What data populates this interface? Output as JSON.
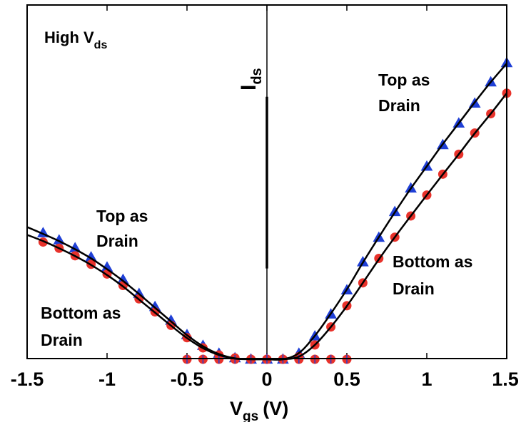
{
  "chart_data": {
    "type": "line",
    "xlabel_main": "V",
    "xlabel_sub": "gs",
    "xlabel_unit": "(V)",
    "ylabel_main": "I",
    "ylabel_sub": "ds",
    "xlim": [
      -1.5,
      1.5
    ],
    "ylim": [
      0,
      1
    ],
    "x_ticks": [
      "-1.5",
      "-1",
      "-0.5",
      "0",
      "0.5",
      "1",
      "1.5"
    ],
    "x_tick_values": [
      -1.5,
      -1,
      -0.5,
      0,
      0.5,
      1,
      1.5
    ],
    "y_ticks_labeled": false,
    "annotations": {
      "corner_main": "High V",
      "corner_sub": "ds",
      "left_top_1": "Top as",
      "left_top_2": "Drain",
      "left_bottom_1": "Bottom as",
      "left_bottom_2": "Drain",
      "right_top_1": "Top as",
      "right_top_2": "Drain",
      "right_bottom_1": "Bottom as",
      "right_bottom_2": "Drain"
    },
    "series": [
      {
        "color": "#1f3fd6",
        "marker": "triangle",
        "x": [
          -1.4,
          -1.3,
          -1.2,
          -1.1,
          -1.0,
          -0.9,
          -0.8,
          -0.7,
          -0.6,
          -0.5,
          -0.4,
          -0.3,
          -0.2,
          -0.1,
          0.0,
          0.1,
          0.2,
          0.3,
          0.4,
          0.5,
          0.6,
          0.7,
          0.8,
          0.9,
          1.0,
          1.1,
          1.2,
          1.3,
          1.4,
          1.5
        ],
        "y": [
          0.387,
          0.365,
          0.341,
          0.313,
          0.282,
          0.244,
          0.201,
          0.161,
          0.119,
          0.075,
          0.042,
          0.018,
          0.004,
          0.0,
          0.0,
          0.0,
          0.018,
          0.071,
          0.138,
          0.212,
          0.298,
          0.373,
          0.452,
          0.524,
          0.591,
          0.657,
          0.723,
          0.784,
          0.849,
          0.908
        ]
      },
      {
        "color": "#e8322b",
        "marker": "circle",
        "x": [
          -1.4,
          -1.3,
          -1.2,
          -1.1,
          -1.0,
          -0.9,
          -0.8,
          -0.7,
          -0.6,
          -0.5,
          -0.4,
          -0.3,
          -0.2,
          -0.1,
          0.0,
          0.1,
          0.2,
          0.3,
          0.4,
          0.5,
          0.6,
          0.7,
          0.8,
          0.9,
          1.0,
          1.1,
          1.2,
          1.3,
          1.4,
          1.5
        ],
        "y": [
          0.359,
          0.34,
          0.317,
          0.291,
          0.261,
          0.226,
          0.185,
          0.145,
          0.104,
          0.066,
          0.035,
          0.013,
          0.004,
          0.0,
          0.0,
          0.0,
          0.008,
          0.044,
          0.099,
          0.164,
          0.234,
          0.309,
          0.374,
          0.439,
          0.503,
          0.567,
          0.628,
          0.693,
          0.752,
          0.815
        ]
      },
      {
        "color": "#e8322b",
        "marker": "circle",
        "x": [
          -0.5,
          -0.4,
          -0.3,
          -0.2,
          -0.1,
          0.0,
          0.1,
          0.2,
          0.3,
          0.4,
          0.5
        ],
        "y": [
          0,
          0,
          0,
          0,
          0,
          0,
          0,
          0,
          0,
          0,
          0
        ]
      },
      {
        "color": "#1f3fd6",
        "marker": "tick",
        "x": [
          -0.5,
          -0.4,
          -0.3,
          -0.2,
          -0.1,
          0.0,
          0.1,
          0.2,
          0.3,
          0.4,
          0.5
        ],
        "y": [
          0,
          0,
          0,
          0,
          0,
          0,
          0,
          0,
          0,
          0,
          0
        ]
      }
    ],
    "fit_lines": [
      {
        "color": "#000000",
        "x": [
          -1.5,
          -1.4,
          -1.3,
          -1.2,
          -1.1,
          -1.0,
          -0.9,
          -0.8,
          -0.7,
          -0.6,
          -0.5,
          -0.4,
          -0.3,
          -0.2,
          -0.1,
          0.0,
          0.1,
          0.2,
          0.3,
          0.4,
          0.5,
          0.6,
          0.7,
          0.8,
          0.9,
          1.0,
          1.1,
          1.2,
          1.3,
          1.4,
          1.5
        ],
        "y": [
          0.405,
          0.384,
          0.362,
          0.337,
          0.309,
          0.276,
          0.24,
          0.2,
          0.158,
          0.116,
          0.074,
          0.04,
          0.016,
          0.003,
          0.0,
          0.0,
          0.0,
          0.019,
          0.072,
          0.14,
          0.214,
          0.296,
          0.374,
          0.45,
          0.523,
          0.591,
          0.659,
          0.723,
          0.787,
          0.849,
          0.906
        ]
      },
      {
        "color": "#000000",
        "x": [
          -1.5,
          -1.4,
          -1.3,
          -1.2,
          -1.1,
          -1.0,
          -0.9,
          -0.8,
          -0.7,
          -0.6,
          -0.5,
          -0.4,
          -0.3,
          -0.2,
          -0.1,
          0.0,
          0.1,
          0.2,
          0.3,
          0.4,
          0.5,
          0.6,
          0.7,
          0.8,
          0.9,
          1.0,
          1.1,
          1.2,
          1.3,
          1.4,
          1.5
        ],
        "y": [
          0.381,
          0.362,
          0.34,
          0.316,
          0.289,
          0.258,
          0.223,
          0.183,
          0.143,
          0.103,
          0.065,
          0.034,
          0.013,
          0.002,
          0.0,
          0.0,
          0.0,
          0.008,
          0.044,
          0.099,
          0.163,
          0.234,
          0.306,
          0.374,
          0.439,
          0.503,
          0.566,
          0.628,
          0.692,
          0.752,
          0.815
        ]
      }
    ],
    "center_line": {
      "x": 0
    },
    "ids_bar": {
      "x": 0,
      "y": [
        0.278,
        0.804
      ]
    }
  }
}
